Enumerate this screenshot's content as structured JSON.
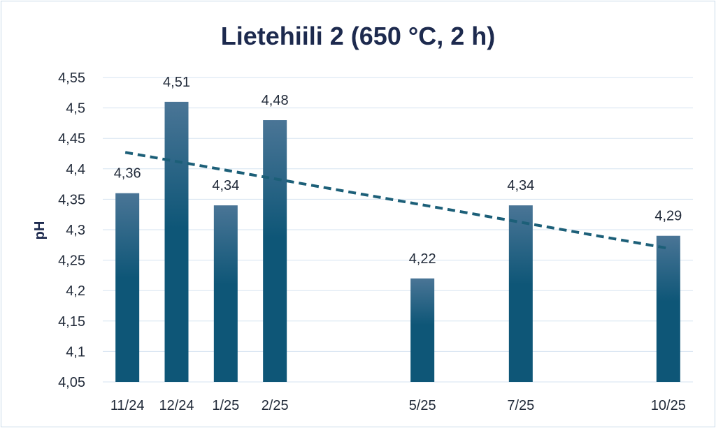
{
  "chart_data": {
    "type": "bar",
    "title": "Lietehiili 2 (650 °C, 2 h)",
    "xlabel": "",
    "ylabel": "pH",
    "ylim": [
      4.05,
      4.55
    ],
    "ytick_step": 0.05,
    "ytick_labels": [
      "4,05",
      "4,1",
      "4,15",
      "4,2",
      "4,25",
      "4,3",
      "4,35",
      "4,4",
      "4,45",
      "4,5",
      "4,55"
    ],
    "grid": true,
    "categories": [
      "11/24",
      "12/24",
      "1/25",
      "2/25",
      "5/25",
      "7/25",
      "10/25"
    ],
    "category_positions": [
      0,
      1,
      2,
      3,
      6,
      8,
      11
    ],
    "x_slots": 12,
    "values": [
      4.36,
      4.51,
      4.34,
      4.48,
      4.22,
      4.34,
      4.29
    ],
    "value_labels": [
      "4,36",
      "4,51",
      "4,34",
      "4,48",
      "4,22",
      "4,34",
      "4,29"
    ],
    "trendline": {
      "type": "linear",
      "style": "dashed",
      "start": 4.427,
      "end": 4.27
    },
    "colors": {
      "bar_top": "#4a7596",
      "bar_bottom": "#0e5677",
      "trendline": "#1c5f78"
    }
  }
}
